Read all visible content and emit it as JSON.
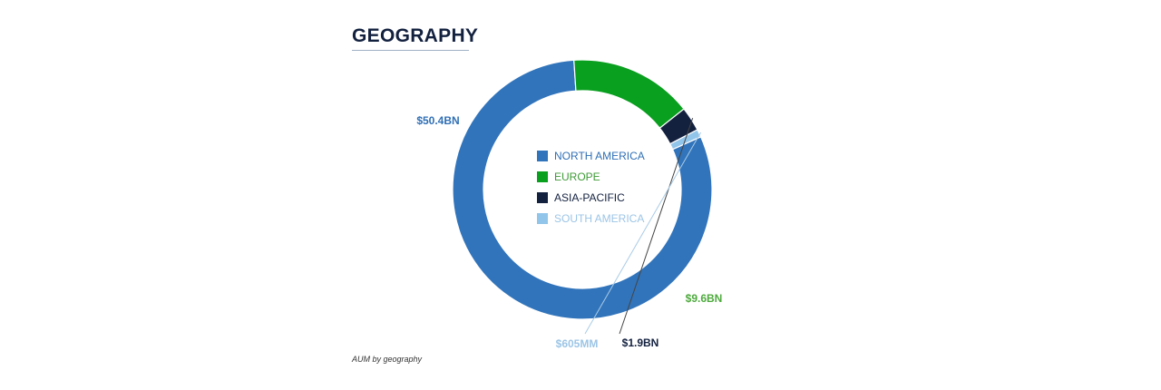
{
  "title": "GEOGRAPHY",
  "caption": "AUM by geography",
  "chart_data": {
    "type": "pie",
    "title": "GEOGRAPHY",
    "unit": "$BN",
    "categories": [
      "NORTH AMERICA",
      "EUROPE",
      "ASIA-PACIFIC",
      "SOUTH AMERICA"
    ],
    "values": [
      50.4,
      9.6,
      1.9,
      0.605
    ],
    "value_labels": [
      "$50.4BN",
      "$9.6BN",
      "$1.9BN",
      "$605MM"
    ],
    "colors": [
      "#3174bb",
      "#099f1f",
      "#13213f",
      "#92c5ea"
    ],
    "label_colors": [
      "#2f6fb5",
      "#4daa3d",
      "#13213f",
      "#9cc5e6"
    ],
    "legend_text_colors": [
      "#2f6fb5",
      "#3f9b37",
      "#13213f",
      "#9cc5e6"
    ],
    "donut": true,
    "legend_position": "center"
  }
}
